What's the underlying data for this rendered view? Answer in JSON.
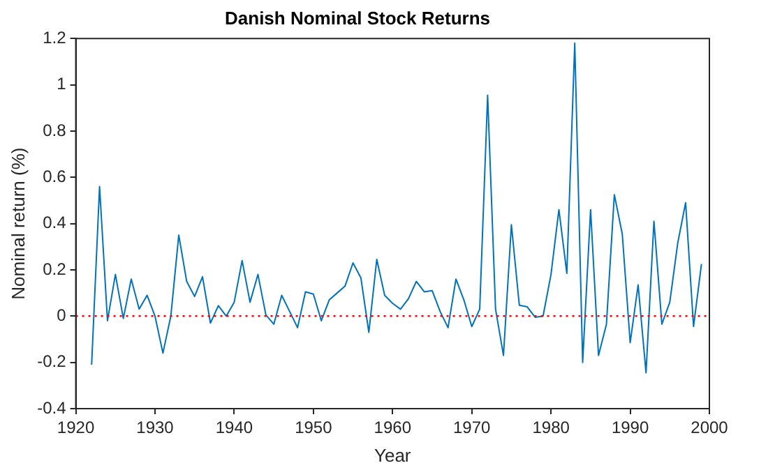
{
  "chart_data": {
    "type": "line",
    "title": "Danish Nominal Stock Returns",
    "xlabel": "Year",
    "ylabel": "Nominal return (%)",
    "x": [
      1922,
      1923,
      1924,
      1925,
      1926,
      1927,
      1928,
      1929,
      1930,
      1931,
      1932,
      1933,
      1934,
      1935,
      1936,
      1937,
      1938,
      1939,
      1940,
      1941,
      1942,
      1943,
      1944,
      1945,
      1946,
      1947,
      1948,
      1949,
      1950,
      1951,
      1952,
      1953,
      1954,
      1955,
      1956,
      1957,
      1958,
      1959,
      1960,
      1961,
      1962,
      1963,
      1964,
      1965,
      1966,
      1967,
      1968,
      1969,
      1970,
      1971,
      1972,
      1973,
      1974,
      1975,
      1976,
      1977,
      1978,
      1979,
      1980,
      1981,
      1982,
      1983,
      1984,
      1985,
      1986,
      1987,
      1988,
      1989,
      1990,
      1991,
      1992,
      1993,
      1994,
      1995,
      1996,
      1997,
      1998,
      1999
    ],
    "series": [
      {
        "color": "#0072bd",
        "values": [
          -0.21,
          0.56,
          -0.02,
          0.18,
          -0.01,
          0.16,
          0.03,
          0.09,
          0.0,
          -0.16,
          0.0,
          0.35,
          0.15,
          0.085,
          0.17,
          -0.03,
          0.045,
          0.0,
          0.06,
          0.24,
          0.06,
          0.18,
          0.005,
          -0.035,
          0.09,
          0.02,
          -0.05,
          0.105,
          0.095,
          -0.02,
          0.07,
          0.1,
          0.13,
          0.23,
          0.165,
          -0.07,
          0.245,
          0.09,
          0.055,
          0.03,
          0.075,
          0.15,
          0.105,
          0.11,
          0.02,
          -0.05,
          0.16,
          0.07,
          -0.045,
          0.03,
          0.955,
          0.03,
          -0.17,
          0.395,
          0.047,
          0.04,
          -0.005,
          0.0,
          0.18,
          0.46,
          0.185,
          1.18,
          -0.2,
          0.46,
          -0.17,
          -0.035,
          0.525,
          0.355,
          -0.115,
          0.135,
          -0.245,
          0.41,
          -0.035,
          0.06,
          0.315,
          0.49,
          -0.045,
          0.225
        ]
      }
    ],
    "xlim": [
      1920,
      2000
    ],
    "xticks": [
      1920,
      1930,
      1940,
      1950,
      1960,
      1970,
      1980,
      1990,
      2000
    ],
    "ylim": [
      -0.4,
      1.2
    ],
    "yticks": [
      -0.4,
      -0.2,
      0,
      0.2,
      0.4,
      0.6,
      0.8,
      1,
      1.2
    ],
    "ref_lines": [
      {
        "axis": "y",
        "value": 0,
        "color": "#ff0000",
        "line_style": "dotted"
      }
    ],
    "grid": false,
    "legend": false,
    "marker": "none",
    "line_style": "solid"
  }
}
